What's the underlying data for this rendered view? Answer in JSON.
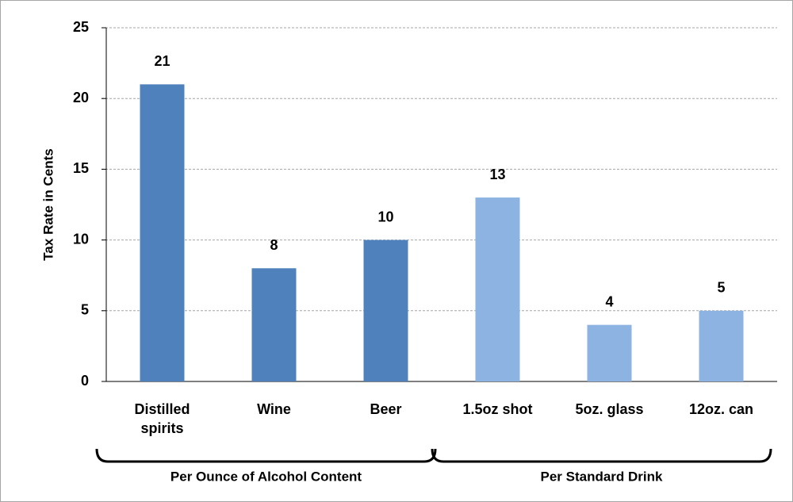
{
  "chart_data": {
    "type": "bar",
    "y_label": "Tax Rate in Cents",
    "groups": [
      {
        "label": "Per Ounce of Alcohol Content",
        "color": "#4f81bd",
        "categories": [
          "Distilled spirits",
          "Wine",
          "Beer"
        ],
        "values": [
          21,
          8,
          10
        ]
      },
      {
        "label": "Per Standard Drink",
        "color": "#8db3e2",
        "categories": [
          "1.5oz shot",
          "5oz. glass",
          "12oz. can"
        ],
        "values": [
          13,
          4,
          5
        ]
      }
    ],
    "ylim": [
      0,
      25
    ],
    "yticks": [
      0,
      5,
      10,
      15,
      20,
      25
    ],
    "grid": true
  }
}
